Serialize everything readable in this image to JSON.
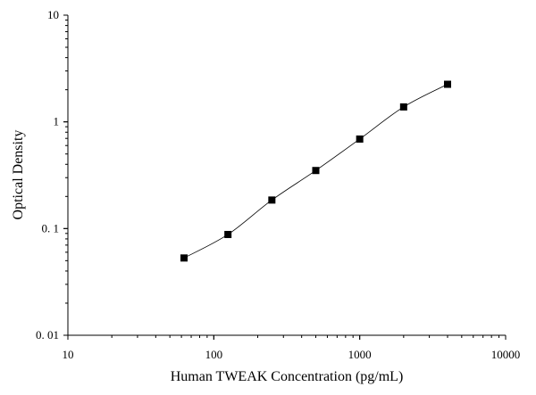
{
  "chart_data": {
    "type": "scatter",
    "xlabel": "Human TWEAK Concentration (pg/mL)",
    "ylabel": "Optical Density",
    "xscale": "log",
    "yscale": "log",
    "xlim": [
      10,
      10000
    ],
    "ylim": [
      0.01,
      10
    ],
    "x_tick_labels": [
      "10",
      "100",
      "1000",
      "10000"
    ],
    "y_tick_labels": [
      "10",
      "1",
      "0. 1",
      "0. 01"
    ],
    "x_ticks": [
      10,
      100,
      1000,
      10000
    ],
    "y_ticks": [
      10,
      1,
      0.1,
      0.01
    ],
    "series": [
      {
        "x": [
          62.5,
          125,
          250,
          500,
          1000,
          2000,
          4000
        ],
        "y": [
          0.053,
          0.088,
          0.185,
          0.35,
          0.69,
          1.38,
          2.25
        ],
        "marker": "square",
        "line": "smooth-curve"
      }
    ],
    "grid": false,
    "colors": {
      "marker": "#000000",
      "line": "#000000"
    }
  }
}
